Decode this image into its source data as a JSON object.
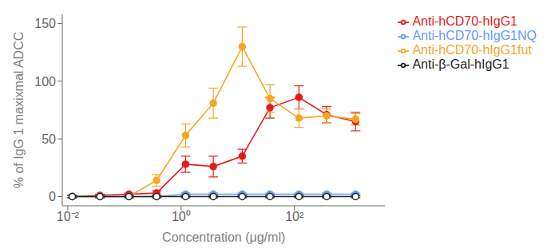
{
  "chart_data": {
    "type": "line",
    "x_label": "Concentration (μg/ml)",
    "y_label": "% of IgG 1 maxixmal ADCC",
    "log": "x",
    "grid": false,
    "legend": "right",
    "xlim": [
      0.008,
      4000
    ],
    "ylim": [
      -8,
      158
    ],
    "xticks": [
      {
        "value": 0.01,
        "label": "10⁻²"
      },
      {
        "value": 1,
        "label": "10⁰"
      },
      {
        "value": 100,
        "label": "10²"
      }
    ],
    "yticks": [
      0,
      50,
      100,
      150
    ],
    "x": [
      0.012,
      0.037,
      0.12,
      0.37,
      1.2,
      3.7,
      12,
      37,
      120,
      370,
      1200
    ],
    "series": [
      {
        "name": "Anti-hCD70-hIgG1",
        "color": "#e8191a",
        "marker": "circle",
        "values": [
          0,
          1,
          2,
          3,
          28,
          26,
          35,
          77,
          86,
          71,
          65
        ],
        "yerr": [
          1,
          1,
          1,
          2,
          7,
          9,
          6,
          9,
          10,
          7,
          8
        ]
      },
      {
        "name": "Anti-hCD70-hIgG1fut",
        "color": "#f5a623",
        "marker": "circle",
        "values": [
          0,
          0,
          0,
          14,
          53,
          81,
          130,
          85,
          68,
          70,
          67
        ],
        "yerr": [
          1,
          1,
          1,
          5,
          10,
          13,
          17,
          12,
          8,
          6,
          5
        ]
      },
      {
        "name": "Anti-hCD70-hIgG1NQ",
        "color": "#6699ff",
        "marker": "circle",
        "values": [
          0,
          0,
          0,
          0,
          2,
          2,
          2,
          2,
          2,
          2,
          2
        ],
        "yerr": [
          1,
          1,
          1,
          1,
          1,
          1,
          1,
          1,
          1,
          1,
          1
        ]
      },
      {
        "name": "Anti-β-Gal-hIgG1",
        "color": "#222222",
        "marker": "open_circle",
        "values": [
          0,
          0,
          0,
          0,
          0,
          0,
          0,
          0,
          0,
          0,
          0
        ],
        "yerr": [
          1,
          1,
          1,
          1,
          1,
          1,
          1,
          1,
          1,
          1,
          1
        ]
      }
    ]
  }
}
